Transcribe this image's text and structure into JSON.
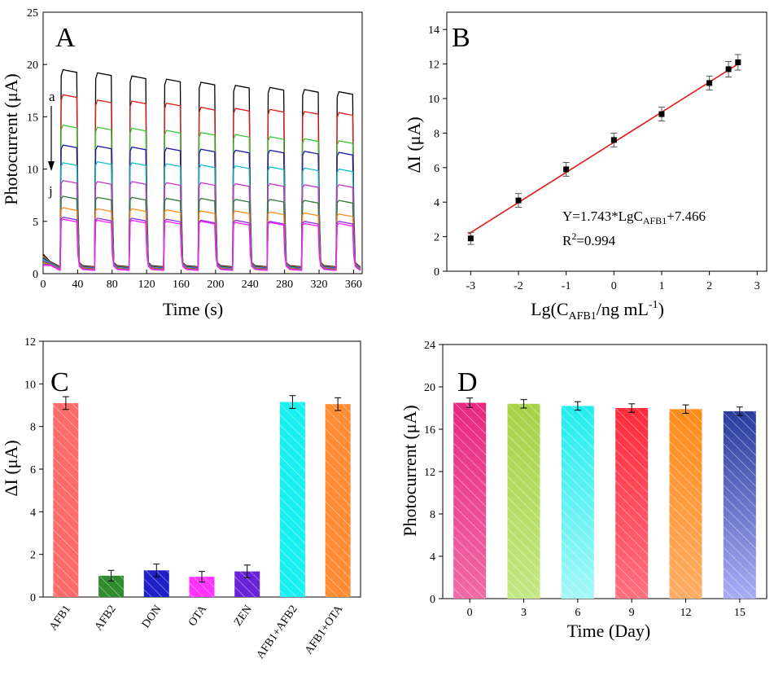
{
  "chart_data": [
    {
      "panel": "A",
      "type": "line",
      "letter": "A",
      "xlabel": "Time (s)",
      "ylabel": "Photocurrent (μA)",
      "xlim": [
        0,
        370
      ],
      "ylim": [
        0,
        25
      ],
      "xticks": [
        0,
        40,
        80,
        120,
        160,
        200,
        240,
        280,
        320,
        360
      ],
      "yticks": [
        0,
        5,
        10,
        15,
        20,
        25
      ],
      "annotations": [
        "a",
        "j"
      ],
      "on_intervals": [
        [
          20,
          40
        ],
        [
          60,
          80
        ],
        [
          100,
          120
        ],
        [
          140,
          160
        ],
        [
          180,
          200
        ],
        [
          220,
          240
        ],
        [
          260,
          280
        ],
        [
          300,
          320
        ],
        [
          340,
          360
        ]
      ],
      "dark_baseline": 0.3,
      "series": [
        {
          "color": "#000000",
          "peaks": [
            19.5,
            19.2,
            18.9,
            18.6,
            18.3,
            18.0,
            17.8,
            17.6,
            17.4
          ]
        },
        {
          "color": "#e41a1c",
          "peaks": [
            17.1,
            16.6,
            16.5,
            16.3,
            15.9,
            15.8,
            15.7,
            15.5,
            15.4
          ]
        },
        {
          "color": "#33cc33",
          "peaks": [
            14.2,
            14.0,
            13.9,
            13.7,
            13.5,
            13.3,
            13.1,
            12.9,
            12.7
          ]
        },
        {
          "color": "#1a1aa6",
          "peaks": [
            12.3,
            12.2,
            12.1,
            12.0,
            11.9,
            11.8,
            11.8,
            11.7,
            11.6
          ]
        },
        {
          "color": "#17becf",
          "peaks": [
            10.6,
            10.7,
            10.6,
            10.5,
            10.4,
            10.3,
            10.2,
            10.1,
            10.0
          ]
        },
        {
          "color": "#cc33cc",
          "peaks": [
            8.9,
            8.8,
            8.8,
            8.7,
            8.7,
            8.6,
            8.6,
            8.5,
            8.5
          ]
        },
        {
          "color": "#2e7d32",
          "peaks": [
            7.4,
            7.3,
            7.3,
            7.2,
            7.2,
            7.1,
            7.1,
            7.0,
            7.0
          ]
        },
        {
          "color": "#ff8c1a",
          "peaks": [
            6.3,
            6.2,
            6.2,
            6.1,
            6.0,
            6.0,
            5.9,
            5.8,
            5.7
          ]
        },
        {
          "color": "#8a2be2",
          "peaks": [
            5.4,
            5.3,
            5.3,
            5.2,
            5.1,
            5.1,
            5.0,
            5.0,
            5.0
          ]
        },
        {
          "color": "#ff1aff",
          "peaks": [
            5.2,
            5.1,
            5.1,
            5.0,
            5.0,
            4.9,
            4.9,
            4.8,
            4.8
          ]
        }
      ]
    },
    {
      "panel": "B",
      "type": "scatter",
      "letter": "B",
      "xlabel_main": "Lg(C",
      "xlabel_sub": "AFB1",
      "xlabel_rest": "/ng mL",
      "xlabel_sup": "-1",
      "xlabel_end": ")",
      "ylabel": "ΔI (μA)",
      "xlim": [
        -3.5,
        3.2
      ],
      "ylim": [
        0,
        15
      ],
      "xticks": [
        -3,
        -2,
        -1,
        0,
        1,
        2,
        3
      ],
      "yticks": [
        0,
        2,
        4,
        6,
        8,
        10,
        12,
        14
      ],
      "x": [
        -3,
        -2,
        -1,
        0,
        1,
        2,
        2.4,
        2.6
      ],
      "y": [
        1.9,
        4.1,
        5.9,
        7.6,
        9.1,
        10.9,
        11.7,
        12.1
      ],
      "err": [
        0.35,
        0.4,
        0.4,
        0.4,
        0.4,
        0.4,
        0.45,
        0.45
      ],
      "fit": {
        "slope": 1.743,
        "intercept": 7.466,
        "color": "#e41a1c"
      },
      "equation_main": "Y=1.743*LgC",
      "equation_sub": "AFB1",
      "equation_end": "+7.466",
      "r2_main": "R",
      "r2_sup": "2",
      "r2_end": "=0.994"
    },
    {
      "panel": "C",
      "type": "bar",
      "letter": "C",
      "ylabel": "ΔI (μA)",
      "ylim": [
        0,
        12
      ],
      "yticks": [
        0,
        2,
        4,
        6,
        8,
        10,
        12
      ],
      "categories": [
        "AFB1",
        "AFB2",
        "DON",
        "OTA",
        "ZEN",
        "AFB1+AFB2",
        "AFB1+OTA"
      ],
      "values": [
        9.1,
        1.0,
        1.25,
        0.95,
        1.2,
        9.15,
        9.05
      ],
      "err": [
        0.3,
        0.25,
        0.3,
        0.25,
        0.3,
        0.3,
        0.3
      ],
      "colors": [
        "#ff6b6b",
        "#2e8b2e",
        "#2020c8",
        "#ff33ff",
        "#6a22d9",
        "#19f0f0",
        "#ff8c33"
      ]
    },
    {
      "panel": "D",
      "type": "bar",
      "letter": "D",
      "xlabel": "Time (Day)",
      "ylabel": "Photocurrent (μA)",
      "ylim": [
        0,
        24
      ],
      "yticks": [
        0,
        4,
        8,
        12,
        16,
        20,
        24
      ],
      "categories": [
        "0",
        "3",
        "6",
        "9",
        "12",
        "15"
      ],
      "values": [
        18.5,
        18.4,
        18.2,
        18.0,
        17.9,
        17.7
      ],
      "err": [
        0.45,
        0.4,
        0.4,
        0.4,
        0.4,
        0.4
      ],
      "colors": [
        "#e8287f",
        "#a6d246",
        "#22eded",
        "#ff2a3c",
        "#ff8c1a",
        "#2a3b9c"
      ],
      "colors_light": [
        "#f06aa6",
        "#c3e884",
        "#a5f7f7",
        "#ff7080",
        "#ffad66",
        "#a8aef5"
      ]
    }
  ]
}
